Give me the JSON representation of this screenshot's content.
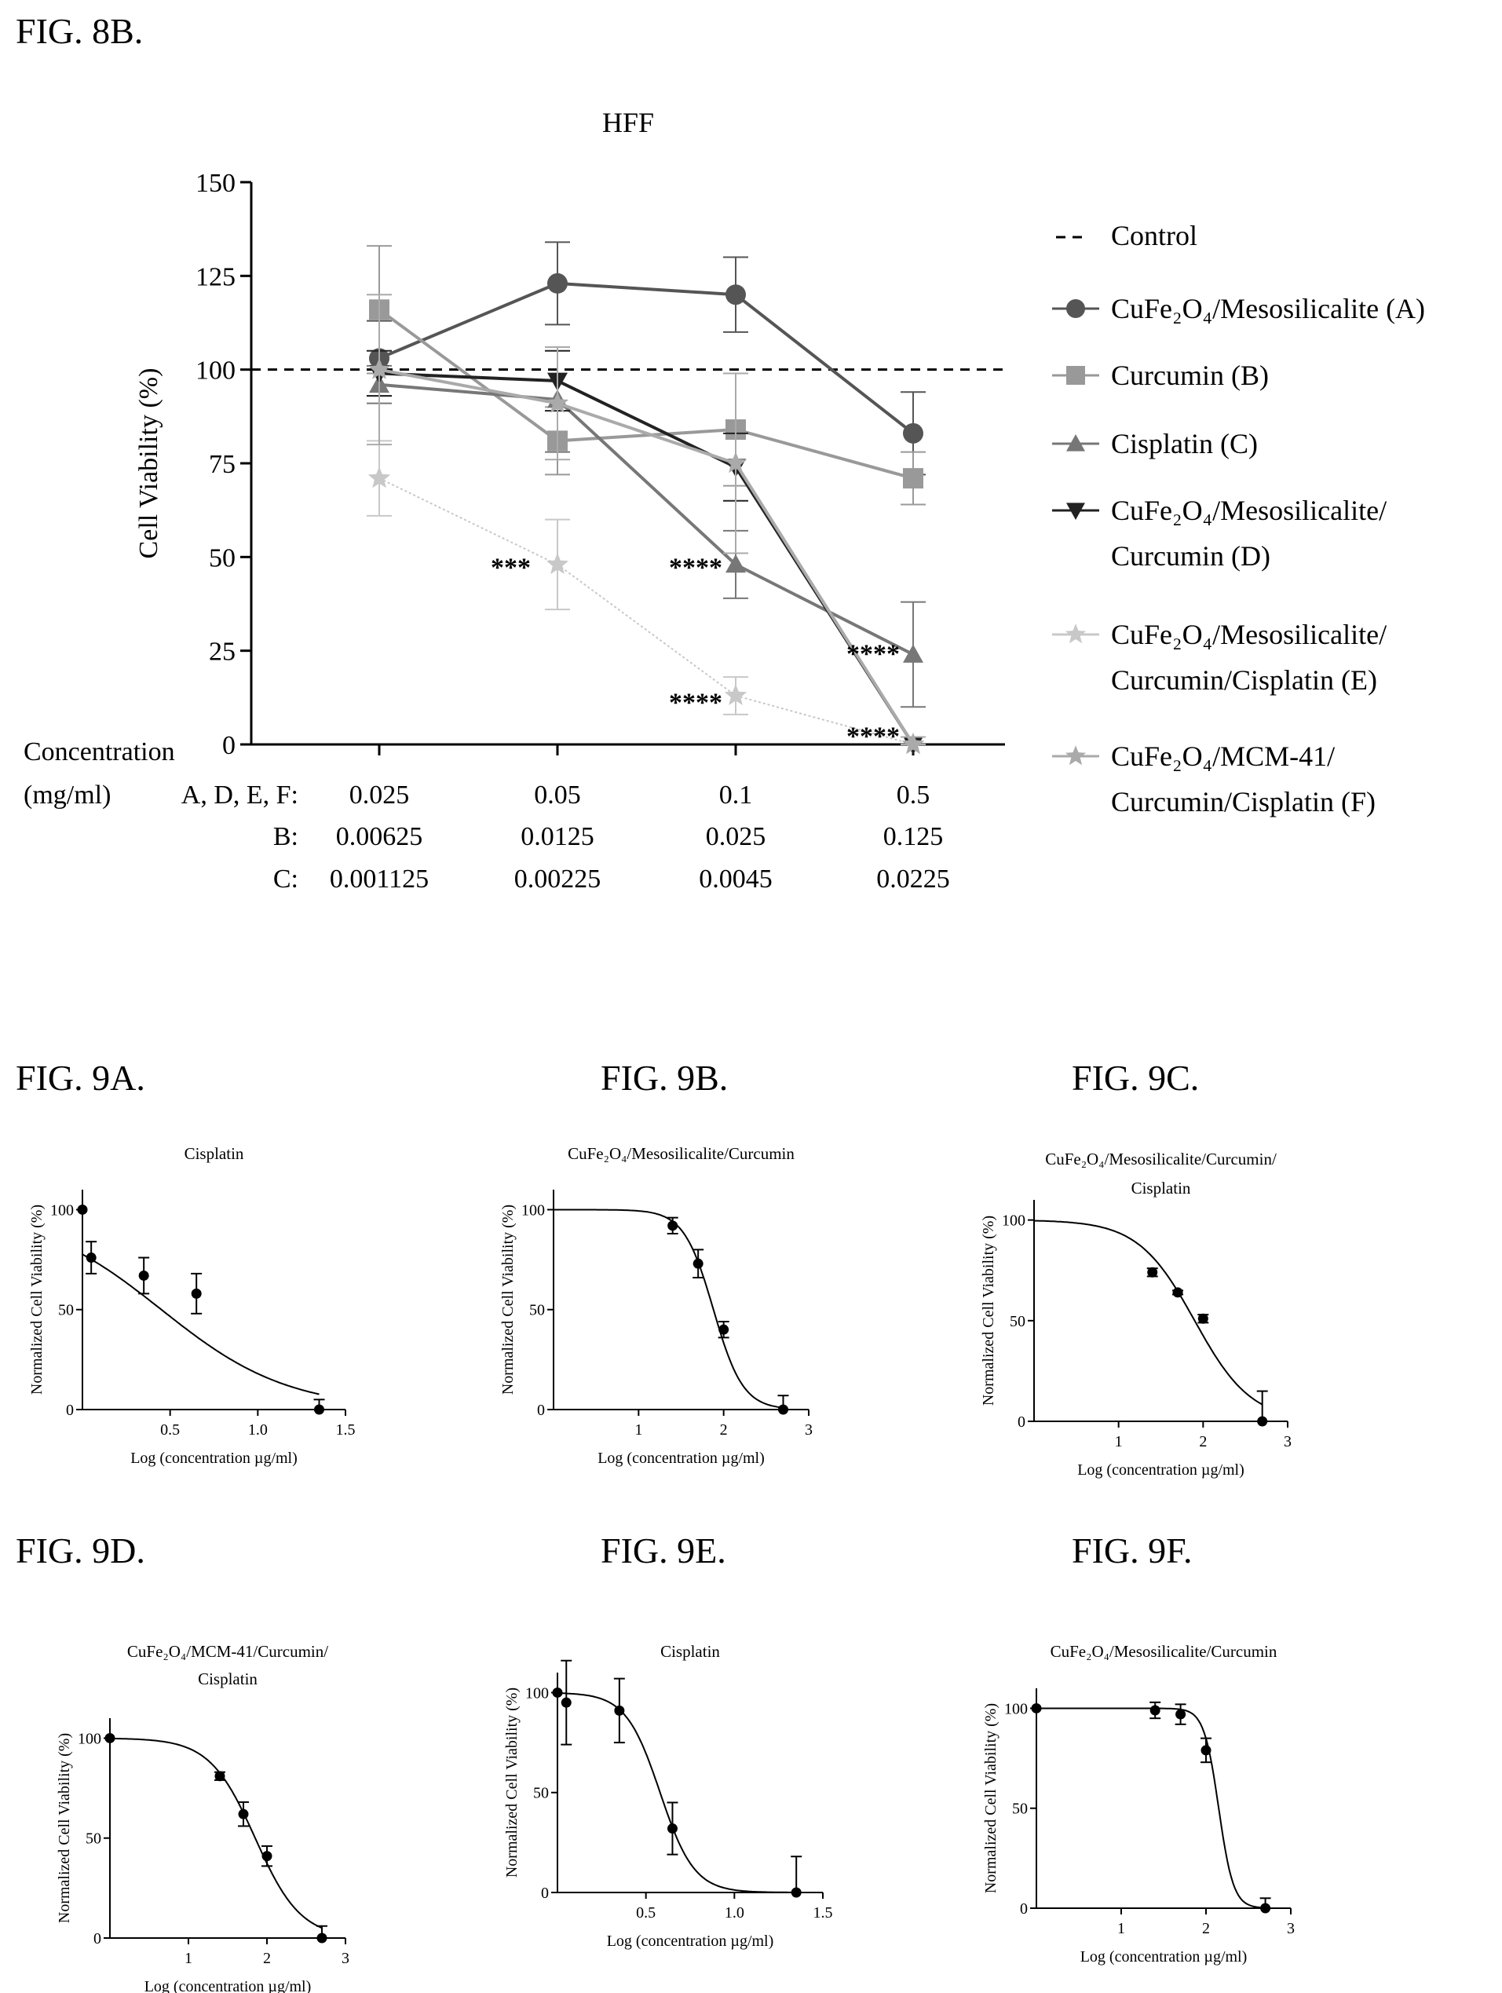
{
  "main_chart": {
    "fig_label": "FIG. 8B.",
    "title": "HFF",
    "ylabel": "Cell Viability (%)",
    "y_ticks": [
      "150",
      "125",
      "100",
      "75",
      "50",
      "25",
      "0"
    ],
    "ylim": [
      0,
      150
    ],
    "x_categories": [
      "0.025",
      "0.05",
      "0.1",
      "0.5"
    ],
    "concentration_label_line1": "Concentration",
    "concentration_label_line2": "(mg/ml)",
    "concentration_rows": [
      {
        "prefix": "A, D, E, F:",
        "values": [
          "0.025",
          "0.05",
          "0.1",
          "0.5"
        ]
      },
      {
        "prefix": "B:",
        "values": [
          "0.00625",
          "0.0125",
          "0.025",
          "0.125"
        ]
      },
      {
        "prefix": "C:",
        "values": [
          "0.001125",
          "0.00225",
          "0.0045",
          "0.0225"
        ]
      }
    ],
    "control_value": 100,
    "legend": [
      {
        "key": "control",
        "lines": [
          "Control"
        ]
      },
      {
        "key": "A",
        "lines": [
          "CuFe₂O₄/Mesosilicalite (A)"
        ]
      },
      {
        "key": "B",
        "lines": [
          "Curcumin (B)"
        ]
      },
      {
        "key": "C",
        "lines": [
          "Cisplatin (C)"
        ]
      },
      {
        "key": "D",
        "lines": [
          "CuFe₂O₄/Mesosilicalite/",
          "Curcumin (D)"
        ]
      },
      {
        "key": "E",
        "lines": [
          "CuFe₂O₄/Mesosilicalite/",
          "Curcumin/Cisplatin (E)"
        ]
      },
      {
        "key": "F",
        "lines": [
          "CuFe₂O₄/MCM-41/",
          "Curcumin/Cisplatin (F)"
        ]
      }
    ],
    "annotations": [
      {
        "text": "***",
        "x_index": 1,
        "y": 47
      },
      {
        "text": "****",
        "x_index": 2,
        "y": 47
      },
      {
        "text": "****",
        "x_index": 2,
        "y": 11
      },
      {
        "text": "****",
        "x_index": 3,
        "y": 24
      },
      {
        "text": "****",
        "x_index": 3,
        "y": 2
      }
    ]
  },
  "chart_data": [
    {
      "type": "line",
      "title": "HFF",
      "xlabel": "Concentration (mg/ml)",
      "ylabel": "Cell Viability (%)",
      "categories": [
        "0.025",
        "0.05",
        "0.1",
        "0.5"
      ],
      "ylim": [
        0,
        150
      ],
      "control_line": 100,
      "series": [
        {
          "key": "A",
          "name": "CuFe₂O₄/Mesosilicalite (A)",
          "color": "#555555",
          "marker": "circle",
          "values": [
            103,
            123,
            120,
            83
          ],
          "errors": [
            10,
            11,
            10,
            11
          ]
        },
        {
          "key": "B",
          "name": "Curcumin (B)",
          "color": "#999999",
          "marker": "square",
          "values": [
            116,
            81,
            84,
            71
          ],
          "errors": [
            17,
            9,
            15,
            7
          ]
        },
        {
          "key": "C",
          "name": "Cisplatin (C)",
          "color": "#777777",
          "marker": "triangle",
          "values": [
            96,
            92,
            48,
            24
          ],
          "errors": [
            5,
            14,
            9,
            14
          ]
        },
        {
          "key": "D",
          "name": "CuFe₂O₄/Mesosilicalite/Curcumin (D)",
          "color": "#222222",
          "marker": "triangle-down",
          "values": [
            99,
            97,
            74,
            0
          ],
          "errors": [
            6,
            8,
            9,
            2
          ]
        },
        {
          "key": "E",
          "name": "CuFe₂O₄/Mesosilicalite/Curcumin/Cisplatin (E)",
          "color": "#c8c8c8",
          "marker": "star",
          "values": [
            71,
            48,
            13,
            0
          ],
          "errors": [
            10,
            12,
            5,
            2
          ]
        },
        {
          "key": "F",
          "name": "CuFe₂O₄/MCM-41/Curcumin/Cisplatin (F)",
          "color": "#aaaaaa",
          "marker": "star",
          "values": [
            100,
            91,
            75,
            0
          ],
          "errors": [
            20,
            15,
            24,
            2
          ]
        }
      ]
    },
    {
      "type": "scatter",
      "fig_label": "FIG. 9A.",
      "title_lines": [
        "Cisplatin"
      ],
      "xlabel": "Log (concentration µg/ml)",
      "ylabel": "Normalized Cell Viability (%)",
      "xlim": [
        0,
        1.5
      ],
      "ylim": [
        0,
        110
      ],
      "x_ticks": [
        "0.5",
        "1.0",
        "1.5"
      ],
      "y_ticks": [
        "100",
        "50",
        "0"
      ],
      "points": [
        [
          0,
          100,
          0
        ],
        [
          0.05,
          76,
          8
        ],
        [
          0.35,
          67,
          9
        ],
        [
          0.65,
          58,
          10
        ],
        [
          1.35,
          0,
          5
        ]
      ],
      "fit": {
        "top": 100,
        "bottom": 0,
        "logIC50": 0.45,
        "hill": -1.2
      }
    },
    {
      "type": "scatter",
      "fig_label": "FIG. 9B.",
      "title_lines": [
        "CuFe₂O₄/Mesosilicalite/Curcumin"
      ],
      "xlabel": "Log (concentration µg/ml)",
      "ylabel": "Normalized Cell Viability (%)",
      "xlim": [
        0,
        3
      ],
      "ylim": [
        0,
        110
      ],
      "x_ticks": [
        "1",
        "2",
        "3"
      ],
      "y_ticks": [
        "100",
        "50",
        "0"
      ],
      "points": [
        [
          1.4,
          92,
          4
        ],
        [
          1.7,
          73,
          7
        ],
        [
          2.0,
          40,
          4
        ],
        [
          2.7,
          0,
          7
        ]
      ],
      "fit": {
        "top": 100,
        "bottom": 0,
        "logIC50": 1.88,
        "hill": -2.5
      }
    },
    {
      "type": "scatter",
      "fig_label": "FIG. 9C.",
      "title_lines": [
        "CuFe₂O₄/Mesosilicalite/Curcumin/",
        "Cisplatin"
      ],
      "xlabel": "Log (concentration µg/ml)",
      "ylabel": "Normalized Cell Viability (%)",
      "xlim": [
        0,
        3
      ],
      "ylim": [
        0,
        110
      ],
      "x_ticks": [
        "1",
        "2",
        "3"
      ],
      "y_ticks": [
        "100",
        "50",
        "0"
      ],
      "points": [
        [
          1.4,
          74,
          2
        ],
        [
          1.7,
          64,
          1
        ],
        [
          2.0,
          51,
          2
        ],
        [
          2.7,
          0,
          15
        ]
      ],
      "fit": {
        "top": 100,
        "bottom": 0,
        "logIC50": 1.9,
        "hill": -1.3
      }
    },
    {
      "type": "scatter",
      "fig_label": "FIG. 9D.",
      "title_lines": [
        "CuFe₂O₄/MCM-41/Curcumin/",
        "Cisplatin"
      ],
      "xlabel": "Log (concentration µg/ml)",
      "ylabel": "Normalized Cell Viability (%)",
      "xlim": [
        0,
        3
      ],
      "ylim": [
        0,
        110
      ],
      "x_ticks": [
        "1",
        "2",
        "3"
      ],
      "y_ticks": [
        "100",
        "50",
        "0"
      ],
      "points": [
        [
          0,
          100,
          0
        ],
        [
          1.4,
          81,
          2
        ],
        [
          1.7,
          62,
          6
        ],
        [
          2.0,
          41,
          5
        ],
        [
          2.7,
          0,
          6
        ]
      ],
      "fit": {
        "top": 100,
        "bottom": 0,
        "logIC50": 1.85,
        "hill": -1.5
      }
    },
    {
      "type": "scatter",
      "fig_label": "FIG. 9E.",
      "title_lines": [
        "Cisplatin"
      ],
      "xlabel": "Log (concentration µg/ml)",
      "ylabel": "Normalized Cell Viability (%)",
      "xlim": [
        0,
        1.5
      ],
      "ylim": [
        0,
        110
      ],
      "x_ticks": [
        "0.5",
        "1.0",
        "1.5"
      ],
      "y_ticks": [
        "100",
        "50",
        "0"
      ],
      "points": [
        [
          0,
          100,
          0
        ],
        [
          0.05,
          95,
          21
        ],
        [
          0.35,
          91,
          16
        ],
        [
          0.65,
          32,
          13
        ],
        [
          1.35,
          0,
          18
        ]
      ],
      "fit": {
        "top": 100,
        "bottom": 0,
        "logIC50": 0.58,
        "hill": -4.5
      }
    },
    {
      "type": "scatter",
      "fig_label": "FIG. 9F.",
      "title_lines": [
        "CuFe₂O₄/Mesosilicalite/Curcumin"
      ],
      "xlabel": "Log (concentration µg/ml)",
      "ylabel": "Normalized Cell Viability (%)",
      "xlim": [
        0,
        3
      ],
      "ylim": [
        0,
        110
      ],
      "x_ticks": [
        "1",
        "2",
        "3"
      ],
      "y_ticks": [
        "100",
        "50",
        "0"
      ],
      "points": [
        [
          0,
          100,
          0
        ],
        [
          1.4,
          99,
          4
        ],
        [
          1.7,
          97,
          5
        ],
        [
          2.0,
          79,
          6
        ],
        [
          2.7,
          0,
          5
        ]
      ],
      "fit": {
        "top": 100,
        "bottom": 0,
        "logIC50": 2.15,
        "hill": -5.0
      }
    }
  ]
}
